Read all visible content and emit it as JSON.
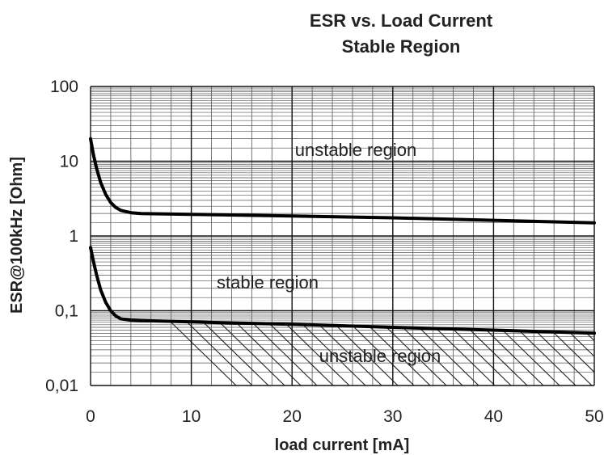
{
  "chart_data": {
    "type": "line",
    "title": "ESR vs. Load Current",
    "subtitle": "Stable Region",
    "xlabel": "load current [mA]",
    "ylabel": "ESR@100kHz [Ohm]",
    "xlim": [
      0,
      50
    ],
    "ylim": [
      0.01,
      100
    ],
    "yscale": "log",
    "grid": true,
    "x_ticks": [
      "0",
      "10",
      "20",
      "30",
      "40",
      "50"
    ],
    "y_ticks": [
      "0,01",
      "0,1",
      "1",
      "10",
      "100"
    ],
    "annotations": [
      "unstable region",
      "stable region",
      "unstable region"
    ],
    "series": [
      {
        "x": [
          0,
          0.3,
          0.6,
          1,
          1.5,
          2,
          2.5,
          3,
          4,
          5,
          10,
          20,
          30,
          40,
          50
        ],
        "y": [
          20,
          12,
          8,
          5.2,
          3.6,
          2.8,
          2.4,
          2.2,
          2.05,
          2.0,
          1.95,
          1.85,
          1.75,
          1.62,
          1.5
        ]
      },
      {
        "x": [
          0,
          0.3,
          0.6,
          1,
          1.5,
          2,
          2.5,
          3,
          4,
          5,
          10,
          20,
          30,
          40,
          50
        ],
        "y": [
          0.7,
          0.45,
          0.3,
          0.19,
          0.13,
          0.1,
          0.085,
          0.078,
          0.075,
          0.074,
          0.071,
          0.066,
          0.06,
          0.055,
          0.05
        ]
      }
    ]
  }
}
